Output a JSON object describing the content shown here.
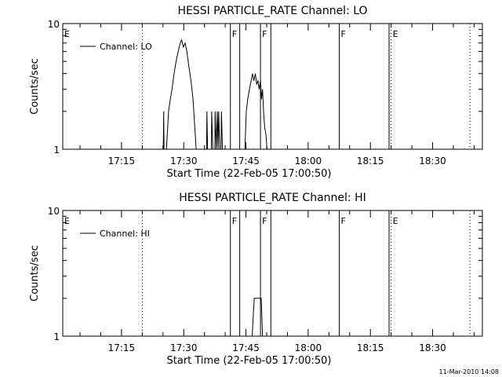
{
  "chart_data": [
    {
      "type": "line",
      "title": "HESSI PARTICLE_RATE Channel: LO",
      "xlabel": "Start Time (22-Feb-05 17:00:50)",
      "ylabel": "Counts/sec",
      "y_scale": "log",
      "ylim": [
        1,
        10
      ],
      "xlim": [
        "17:00:50",
        "18:42:00"
      ],
      "x_tick_labels": [
        "17:15",
        "17:30",
        "17:45",
        "18:00",
        "18:15",
        "18:30"
      ],
      "y_tick_labels": [
        "1",
        "10"
      ],
      "legend": {
        "placement": "top-left",
        "entries": [
          "Channel: LO"
        ]
      },
      "series": [
        {
          "name": "Channel: LO",
          "points": [
            [
              "17:25:05",
              1
            ],
            [
              "17:25:10",
              2
            ],
            [
              "17:25:15",
              1
            ],
            [
              "17:25:50",
              1
            ],
            [
              "17:26:20",
              2
            ],
            [
              "17:26:45",
              2.5
            ],
            [
              "17:27:10",
              3
            ],
            [
              "17:27:40",
              4
            ],
            [
              "17:28:10",
              5
            ],
            [
              "17:28:40",
              6
            ],
            [
              "17:29:10",
              7
            ],
            [
              "17:29:30",
              7.4
            ],
            [
              "17:29:55",
              6.5
            ],
            [
              "17:30:20",
              7
            ],
            [
              "17:30:45",
              6
            ],
            [
              "17:31:15",
              4.5
            ],
            [
              "17:31:45",
              3.5
            ],
            [
              "17:32:15",
              2.5
            ],
            [
              "17:32:40",
              1.5
            ],
            [
              "17:33:00",
              1
            ],
            [
              "17:35:30",
              1
            ],
            [
              "17:35:35",
              2
            ],
            [
              "17:35:45",
              1
            ],
            [
              "17:36:40",
              1
            ],
            [
              "17:36:45",
              2
            ],
            [
              "17:37:00",
              1
            ],
            [
              "17:37:30",
              1
            ],
            [
              "17:37:35",
              2
            ],
            [
              "17:37:50",
              1
            ],
            [
              "17:38:05",
              2
            ],
            [
              "17:38:15",
              1
            ],
            [
              "17:38:25",
              2
            ],
            [
              "17:38:40",
              1
            ],
            [
              "17:39:00",
              1
            ],
            [
              "17:39:05",
              2
            ],
            [
              "17:39:20",
              1
            ],
            [
              "17:40:20",
              1
            ],
            [
              "17:44:45",
              1
            ],
            [
              "17:45:05",
              2
            ],
            [
              "17:45:25",
              2.5
            ],
            [
              "17:45:50",
              3
            ],
            [
              "17:46:15",
              3.5
            ],
            [
              "17:46:35",
              4
            ],
            [
              "17:46:55",
              3.5
            ],
            [
              "17:47:15",
              4
            ],
            [
              "17:47:35",
              3.3
            ],
            [
              "17:47:55",
              3.5
            ],
            [
              "17:48:10",
              3
            ],
            [
              "17:48:30",
              3.5
            ],
            [
              "17:48:45",
              2.5
            ],
            [
              "17:49:00",
              3
            ],
            [
              "17:49:15",
              2
            ],
            [
              "17:49:30",
              1.5
            ],
            [
              "17:49:50",
              1.3
            ],
            [
              "17:50:05",
              1
            ]
          ]
        }
      ],
      "event_lines": [
        {
          "label": "E",
          "time": "17:00:50",
          "style": "dotted"
        },
        {
          "label": "",
          "time": "17:20:00",
          "style": "dotted"
        },
        {
          "label": "F",
          "time": "17:41:15",
          "style": "solid"
        },
        {
          "label": "",
          "time": "17:43:30",
          "style": "solid"
        },
        {
          "label": "F",
          "time": "17:48:30",
          "style": "solid"
        },
        {
          "label": "",
          "time": "17:51:00",
          "style": "solid"
        },
        {
          "label": "F",
          "time": "18:07:30",
          "style": "solid"
        },
        {
          "label": "",
          "time": "18:19:30",
          "style": "solid"
        },
        {
          "label": "E",
          "time": "18:20:00",
          "style": "dotted"
        },
        {
          "label": "",
          "time": "18:39:00",
          "style": "dotted"
        }
      ]
    },
    {
      "type": "line",
      "title": "HESSI PARTICLE_RATE Channel: HI",
      "xlabel": "Start Time (22-Feb-05 17:00:50)",
      "ylabel": "Counts/sec",
      "y_scale": "log",
      "ylim": [
        1,
        10
      ],
      "xlim": [
        "17:00:50",
        "18:42:00"
      ],
      "x_tick_labels": [
        "17:15",
        "17:30",
        "17:45",
        "18:00",
        "18:15",
        "18:30"
      ],
      "y_tick_labels": [
        "1",
        "10"
      ],
      "legend": {
        "placement": "top-left",
        "entries": [
          "Channel: HI"
        ]
      },
      "series": [
        {
          "name": "Channel: HI",
          "points": [
            [
              "17:46:30",
              1
            ],
            [
              "17:47:00",
              2
            ],
            [
              "17:48:40",
              2
            ],
            [
              "17:49:00",
              1
            ]
          ]
        }
      ],
      "event_lines": [
        {
          "label": "E",
          "time": "17:00:50",
          "style": "dotted"
        },
        {
          "label": "",
          "time": "17:20:00",
          "style": "dotted"
        },
        {
          "label": "F",
          "time": "17:41:15",
          "style": "solid"
        },
        {
          "label": "",
          "time": "17:43:30",
          "style": "solid"
        },
        {
          "label": "F",
          "time": "17:48:30",
          "style": "solid"
        },
        {
          "label": "",
          "time": "17:51:00",
          "style": "solid"
        },
        {
          "label": "F",
          "time": "18:07:30",
          "style": "solid"
        },
        {
          "label": "",
          "time": "18:19:30",
          "style": "solid"
        },
        {
          "label": "E",
          "time": "18:20:00",
          "style": "dotted"
        },
        {
          "label": "",
          "time": "18:39:00",
          "style": "dotted"
        }
      ]
    }
  ],
  "footer": {
    "timestamp": "11-Mar-2010 14:08"
  }
}
